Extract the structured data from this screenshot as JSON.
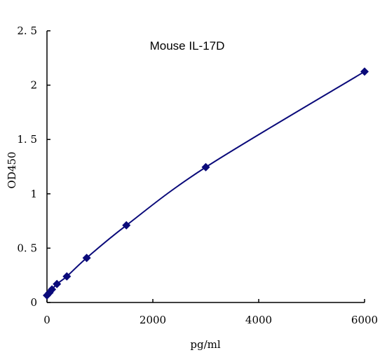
{
  "chart_data": {
    "type": "line",
    "title": "Mouse IL-17D",
    "xlabel": "pg/ml",
    "ylabel": "OD450",
    "xlim": [
      0,
      6000
    ],
    "ylim": [
      0,
      2.5
    ],
    "x_ticks": [
      0,
      2000,
      4000,
      6000
    ],
    "y_ticks": [
      0,
      0.5,
      1,
      1.5,
      2,
      2.5
    ],
    "x_tick_labels": [
      "0",
      "2000",
      "4000",
      "6000"
    ],
    "y_tick_labels": [
      "0",
      "0. 5",
      "1",
      "1. 5",
      "2",
      "2. 5"
    ],
    "grid": false,
    "legend": "none",
    "color": "#0a0a7a",
    "marker": "diamond",
    "series": [
      {
        "x": [
          0,
          47,
          94,
          188,
          375,
          750,
          1500,
          3000,
          6000
        ],
        "y": [
          0.065,
          0.09,
          0.12,
          0.17,
          0.24,
          0.41,
          0.71,
          1.245,
          2.125
        ]
      }
    ]
  }
}
